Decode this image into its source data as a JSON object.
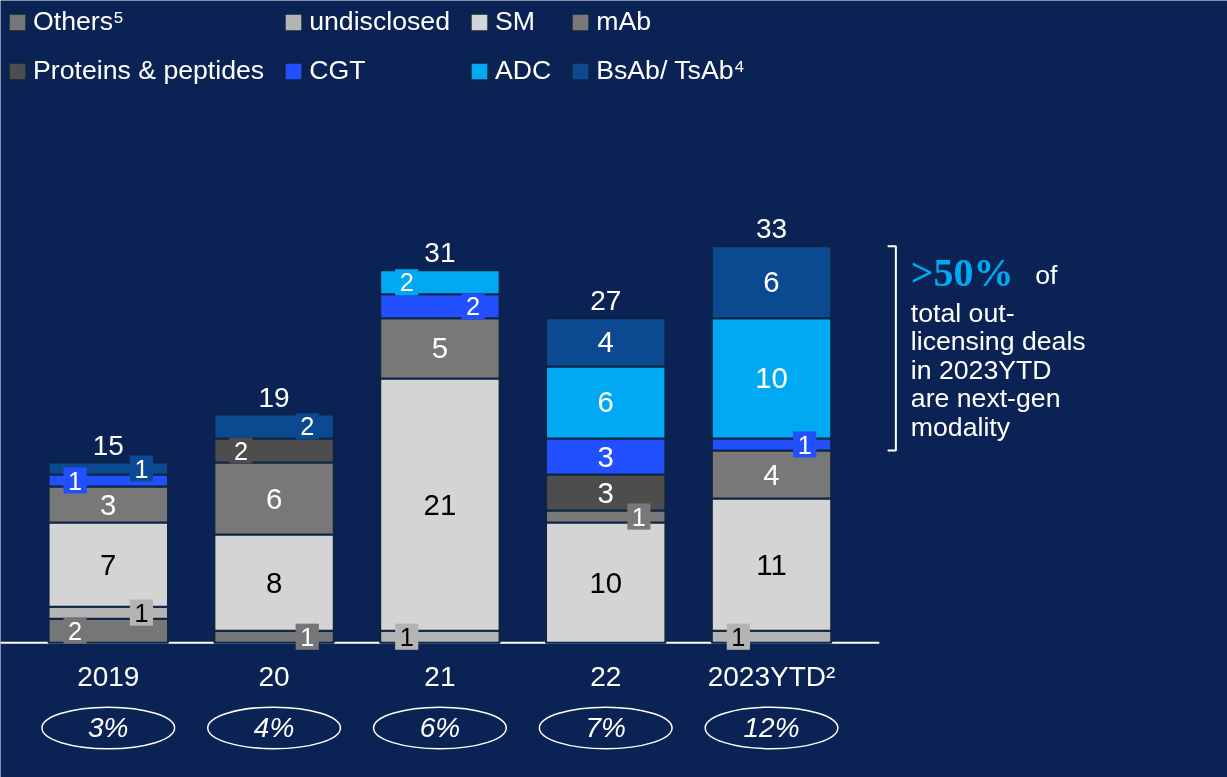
{
  "chart_data": {
    "type": "bar",
    "stacked": true,
    "data_labels": true,
    "legend": "top",
    "grid": false,
    "tick_labels": "x",
    "categories": [
      "2019",
      "20",
      "21",
      "22",
      "2023YTD²"
    ],
    "series": [
      {
        "name": "Others⁵",
        "color": "#767676",
        "values": [
          2,
          1,
          null,
          null,
          null
        ]
      },
      {
        "name": "undisclosed",
        "color": "#b4b4b4",
        "values": [
          1,
          null,
          1,
          null,
          1
        ]
      },
      {
        "name": "SM",
        "color": "#d4d4d4",
        "values": [
          7,
          8,
          21,
          10,
          11
        ]
      },
      {
        "name": "mAb",
        "color": "#787878",
        "values": [
          3,
          6,
          5,
          1,
          4
        ]
      },
      {
        "name": "Proteins & peptides",
        "color": "#4d4d4d",
        "values": [
          null,
          2,
          null,
          3,
          null
        ]
      },
      {
        "name": "CGT",
        "color": "#2350ff",
        "values": [
          1,
          null,
          2,
          3,
          1
        ]
      },
      {
        "name": "ADC",
        "color": "#00a9f2",
        "values": [
          null,
          null,
          2,
          6,
          10
        ]
      },
      {
        "name": "BsAb/ TsAb⁴",
        "color": "#0b4a90",
        "values": [
          1,
          2,
          null,
          4,
          6
        ]
      }
    ],
    "totals": [
      "15",
      "19",
      "31",
      "27",
      "33"
    ],
    "annotations": [
      "3%",
      "4%",
      "6%",
      "7%",
      "12%",
      ">50%",
      "of",
      "total out-",
      "licensing deals",
      "in 2023YTD",
      "are next-gen",
      "modality"
    ]
  }
}
